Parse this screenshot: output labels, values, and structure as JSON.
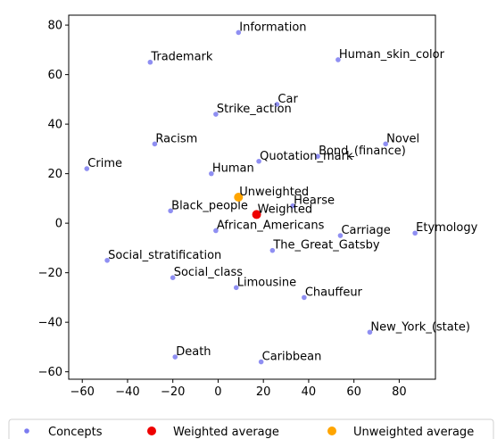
{
  "chart_data": {
    "type": "scatter",
    "title": "",
    "xlabel": "",
    "ylabel": "",
    "xlim": [
      -66,
      96
    ],
    "ylim": [
      -63,
      84
    ],
    "x_ticks": [
      -60,
      -40,
      -20,
      0,
      20,
      40,
      60,
      80
    ],
    "y_ticks": [
      -60,
      -40,
      -20,
      0,
      20,
      40,
      60,
      80
    ],
    "grid": false,
    "legend_position": "bottom",
    "series": [
      {
        "name": "Concepts",
        "color": "#7b7bf0",
        "points": [
          {
            "x": 9,
            "y": 77,
            "label": "Information"
          },
          {
            "x": -30,
            "y": 65,
            "label": "Trademark"
          },
          {
            "x": 53,
            "y": 66,
            "label": "Human_skin_color"
          },
          {
            "x": 26,
            "y": 48,
            "label": "Car"
          },
          {
            "x": -1,
            "y": 44,
            "label": "Strike_action"
          },
          {
            "x": -28,
            "y": 32,
            "label": "Racism"
          },
          {
            "x": 74,
            "y": 32,
            "label": "Novel"
          },
          {
            "x": 44,
            "y": 27,
            "label": "Bond_(finance)"
          },
          {
            "x": 18,
            "y": 25,
            "label": "Quotation_mark"
          },
          {
            "x": -58,
            "y": 22,
            "label": "Crime"
          },
          {
            "x": -3,
            "y": 20,
            "label": "Human"
          },
          {
            "x": 33,
            "y": 7,
            "label": "Hearse"
          },
          {
            "x": -21,
            "y": 5,
            "label": "Black_people"
          },
          {
            "x": -1,
            "y": -3,
            "label": "African_Americans"
          },
          {
            "x": 54,
            "y": -5,
            "label": "Carriage"
          },
          {
            "x": 87,
            "y": -4,
            "label": "Etymology"
          },
          {
            "x": 24,
            "y": -11,
            "label": "The_Great_Gatsby"
          },
          {
            "x": -49,
            "y": -15,
            "label": "Social_stratification"
          },
          {
            "x": -20,
            "y": -22,
            "label": "Social_class"
          },
          {
            "x": 8,
            "y": -26,
            "label": "Limousine"
          },
          {
            "x": 38,
            "y": -30,
            "label": "Chauffeur"
          },
          {
            "x": 67,
            "y": -44,
            "label": "New_York_(state)"
          },
          {
            "x": -19,
            "y": -54,
            "label": "Death"
          },
          {
            "x": 19,
            "y": -56,
            "label": "Caribbean"
          }
        ]
      },
      {
        "name": "Weighted average",
        "color": "#ee0000",
        "points": [
          {
            "x": 17,
            "y": 3.5,
            "label": "Weighted"
          }
        ]
      },
      {
        "name": "Unweighted average",
        "color": "#ffa500",
        "points": [
          {
            "x": 9,
            "y": 10.5,
            "label": "Unweighted"
          }
        ]
      }
    ]
  }
}
